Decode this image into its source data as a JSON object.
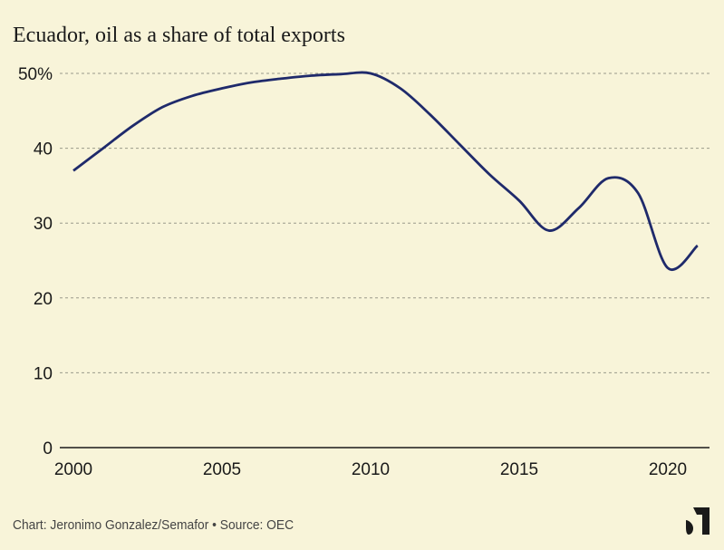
{
  "chart_data": {
    "type": "line",
    "title": "Ecuador, oil as a share of total exports",
    "xlabel": "",
    "ylabel": "",
    "xlim": [
      2000,
      2021
    ],
    "ylim": [
      0,
      50
    ],
    "grid": true,
    "x_ticks": [
      2000,
      2005,
      2010,
      2015,
      2020
    ],
    "y_ticks": [
      0,
      10,
      20,
      30,
      40,
      50
    ],
    "y_tick_labels": [
      "0",
      "10",
      "20",
      "30",
      "40",
      "50%"
    ],
    "series": [
      {
        "name": "Oil share of exports",
        "color": "#1f2a6b",
        "x": [
          2000,
          2001,
          2002,
          2003,
          2004,
          2005,
          2006,
          2007,
          2008,
          2009,
          2010,
          2011,
          2012,
          2013,
          2014,
          2015,
          2016,
          2017,
          2018,
          2019,
          2020,
          2021
        ],
        "values": [
          37,
          40,
          43,
          45.5,
          47,
          48,
          48.8,
          49.3,
          49.7,
          49.9,
          50,
          48,
          44.5,
          40.5,
          36.5,
          33,
          29,
          32,
          36,
          34,
          24,
          27
        ]
      }
    ],
    "source": "Chart: Jeronimo Gonzalez/Semafor • Source: OEC"
  }
}
